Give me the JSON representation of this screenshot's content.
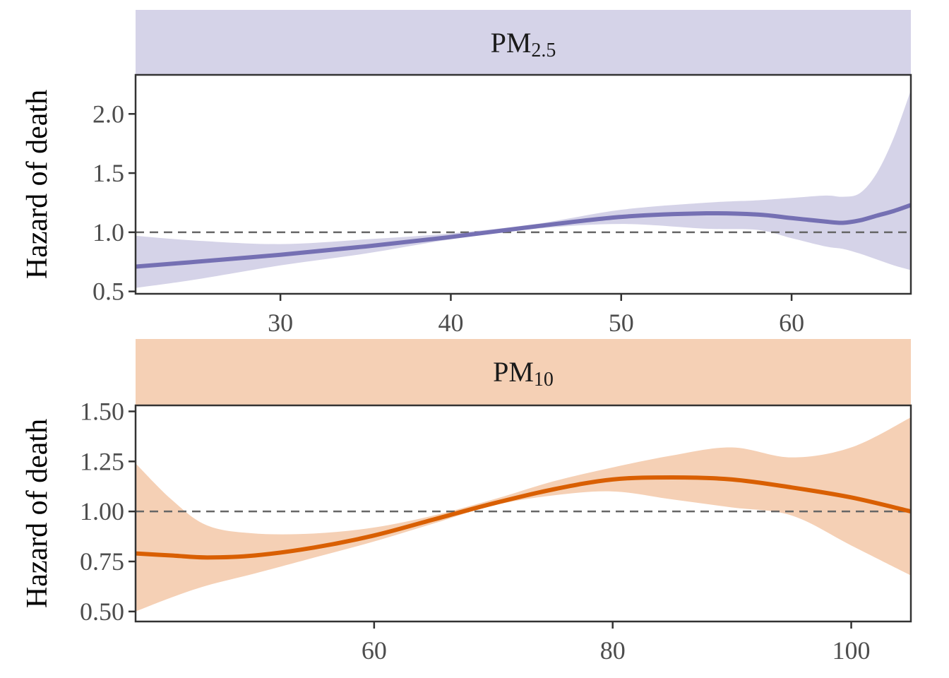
{
  "chart_data": [
    {
      "type": "line",
      "title_main": "PM",
      "title_sub": "2.5",
      "ylabel": "Hazard of death",
      "xlabel": "",
      "xlim": [
        21.5,
        67
      ],
      "ylim": [
        0.48,
        2.33
      ],
      "xticks": [
        "30",
        "40",
        "50",
        "60"
      ],
      "yticks": [
        "0.5",
        "1.0",
        "1.5",
        "2.0"
      ],
      "reference_y": 1.0,
      "line_color": "#7570b3",
      "band_color": "#d5d3e8",
      "strip_color": "#d5d3e8",
      "series": [
        {
          "x": [
            21.5,
            25,
            30,
            35,
            40,
            45,
            50,
            55,
            58,
            60,
            62,
            63,
            64,
            65,
            66,
            67
          ],
          "values": [
            0.71,
            0.75,
            0.81,
            0.88,
            0.96,
            1.05,
            1.13,
            1.16,
            1.15,
            1.12,
            1.09,
            1.08,
            1.1,
            1.14,
            1.18,
            1.23
          ],
          "lower": [
            0.53,
            0.6,
            0.72,
            0.82,
            0.94,
            1.03,
            1.07,
            1.03,
            1.02,
            0.95,
            0.88,
            0.86,
            0.82,
            0.77,
            0.72,
            0.68
          ],
          "upper": [
            0.97,
            0.93,
            0.9,
            0.94,
            0.99,
            1.07,
            1.19,
            1.25,
            1.27,
            1.29,
            1.31,
            1.3,
            1.33,
            1.5,
            1.8,
            2.2
          ]
        }
      ]
    },
    {
      "type": "line",
      "title_main": "PM",
      "title_sub": "10",
      "ylabel": "Hazard of death",
      "xlabel": "",
      "xlim": [
        40,
        105
      ],
      "ylim": [
        0.45,
        1.53
      ],
      "xticks": [
        "60",
        "80",
        "100"
      ],
      "yticks": [
        "0.50",
        "0.75",
        "1.00",
        "1.25",
        "1.50"
      ],
      "reference_y": 1.0,
      "line_color": "#d95f02",
      "band_color": "#f5d0b5",
      "strip_color": "#f5d0b5",
      "series": [
        {
          "x": [
            40,
            43,
            46,
            50,
            55,
            60,
            65,
            70,
            75,
            80,
            85,
            90,
            95,
            100,
            105
          ],
          "values": [
            0.79,
            0.78,
            0.77,
            0.78,
            0.82,
            0.88,
            0.96,
            1.04,
            1.11,
            1.16,
            1.17,
            1.16,
            1.12,
            1.07,
            1.0
          ],
          "lower": [
            0.5,
            0.57,
            0.63,
            0.69,
            0.77,
            0.85,
            0.94,
            1.03,
            1.08,
            1.1,
            1.06,
            1.02,
            0.98,
            0.83,
            0.68
          ],
          "upper": [
            1.24,
            1.06,
            0.93,
            0.89,
            0.89,
            0.92,
            0.98,
            1.06,
            1.15,
            1.22,
            1.28,
            1.32,
            1.27,
            1.32,
            1.47
          ]
        }
      ]
    }
  ]
}
